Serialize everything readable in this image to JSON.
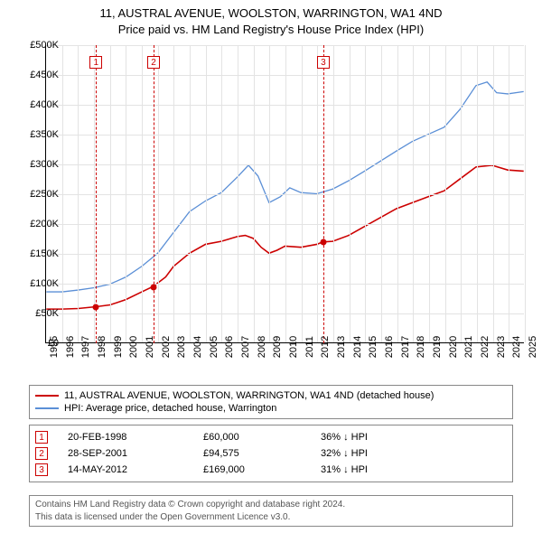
{
  "title_line1": "11, AUSTRAL AVENUE, WOOLSTON, WARRINGTON, WA1 4ND",
  "title_line2": "Price paid vs. HM Land Registry's House Price Index (HPI)",
  "chart": {
    "type": "line",
    "x_start_year": 1995,
    "x_end_year": 2025,
    "ylim": [
      0,
      500000
    ],
    "ytick_step": 50000,
    "ytick_labels": [
      "£0",
      "£50K",
      "£100K",
      "£150K",
      "£200K",
      "£250K",
      "£300K",
      "£350K",
      "£400K",
      "£450K",
      "£500K"
    ],
    "xtick_years": [
      1995,
      1996,
      1997,
      1998,
      1999,
      2000,
      2001,
      2002,
      2003,
      2004,
      2005,
      2006,
      2007,
      2008,
      2009,
      2010,
      2011,
      2012,
      2013,
      2014,
      2015,
      2016,
      2017,
      2018,
      2019,
      2020,
      2021,
      2022,
      2023,
      2024,
      2025
    ],
    "grid_color": "#e3e3e3",
    "background_color": "#ffffff",
    "series": [
      {
        "name": "property",
        "label": "11, AUSTRAL AVENUE, WOOLSTON, WARRINGTON, WA1 4ND (detached house)",
        "color": "#cc0000",
        "line_width": 1.6,
        "points": [
          [
            1995.0,
            56000
          ],
          [
            1996.0,
            56000
          ],
          [
            1997.0,
            57000
          ],
          [
            1998.13,
            60000
          ],
          [
            1999.0,
            63000
          ],
          [
            2000.0,
            72000
          ],
          [
            2001.0,
            85000
          ],
          [
            2001.74,
            94575
          ],
          [
            2002.5,
            110000
          ],
          [
            2003.0,
            128000
          ],
          [
            2004.0,
            150000
          ],
          [
            2005.0,
            165000
          ],
          [
            2006.0,
            170000
          ],
          [
            2007.0,
            178000
          ],
          [
            2007.5,
            180000
          ],
          [
            2008.0,
            175000
          ],
          [
            2008.5,
            160000
          ],
          [
            2009.0,
            150000
          ],
          [
            2009.5,
            155000
          ],
          [
            2010.0,
            162000
          ],
          [
            2011.0,
            160000
          ],
          [
            2012.0,
            165000
          ],
          [
            2012.37,
            169000
          ],
          [
            2013.0,
            170000
          ],
          [
            2014.0,
            180000
          ],
          [
            2015.0,
            195000
          ],
          [
            2016.0,
            210000
          ],
          [
            2017.0,
            225000
          ],
          [
            2018.0,
            235000
          ],
          [
            2019.0,
            245000
          ],
          [
            2020.0,
            255000
          ],
          [
            2021.0,
            275000
          ],
          [
            2022.0,
            295000
          ],
          [
            2023.0,
            298000
          ],
          [
            2024.0,
            290000
          ],
          [
            2025.0,
            288000
          ]
        ]
      },
      {
        "name": "hpi",
        "label": "HPI: Average price, detached house, Warrington",
        "color": "#5b8fd6",
        "line_width": 1.3,
        "points": [
          [
            1995.0,
            85000
          ],
          [
            1996.0,
            85000
          ],
          [
            1997.0,
            88000
          ],
          [
            1998.0,
            92000
          ],
          [
            1999.0,
            98000
          ],
          [
            2000.0,
            110000
          ],
          [
            2001.0,
            128000
          ],
          [
            2002.0,
            150000
          ],
          [
            2003.0,
            185000
          ],
          [
            2004.0,
            220000
          ],
          [
            2005.0,
            238000
          ],
          [
            2006.0,
            252000
          ],
          [
            2007.0,
            278000
          ],
          [
            2007.7,
            298000
          ],
          [
            2008.3,
            280000
          ],
          [
            2009.0,
            235000
          ],
          [
            2009.7,
            245000
          ],
          [
            2010.3,
            260000
          ],
          [
            2011.0,
            252000
          ],
          [
            2012.0,
            250000
          ],
          [
            2013.0,
            258000
          ],
          [
            2014.0,
            272000
          ],
          [
            2015.0,
            288000
          ],
          [
            2016.0,
            305000
          ],
          [
            2017.0,
            322000
          ],
          [
            2018.0,
            338000
          ],
          [
            2019.0,
            350000
          ],
          [
            2020.0,
            362000
          ],
          [
            2021.0,
            392000
          ],
          [
            2022.0,
            432000
          ],
          [
            2022.7,
            438000
          ],
          [
            2023.3,
            420000
          ],
          [
            2024.0,
            418000
          ],
          [
            2025.0,
            422000
          ]
        ]
      }
    ],
    "sale_markers": [
      {
        "num": "1",
        "year": 1998.13,
        "price": 60000,
        "color": "#cc0000"
      },
      {
        "num": "2",
        "year": 2001.74,
        "price": 94575,
        "color": "#cc0000"
      },
      {
        "num": "3",
        "year": 2012.37,
        "price": 169000,
        "color": "#cc0000"
      }
    ]
  },
  "legend": {
    "rows": [
      {
        "color": "#cc0000",
        "label": "11, AUSTRAL AVENUE, WOOLSTON, WARRINGTON, WA1 4ND (detached house)"
      },
      {
        "color": "#5b8fd6",
        "label": "HPI: Average price, detached house, Warrington"
      }
    ]
  },
  "sales_table": {
    "rows": [
      {
        "num": "1",
        "date": "20-FEB-1998",
        "price": "£60,000",
        "diff": "36% ↓ HPI",
        "color": "#cc0000"
      },
      {
        "num": "2",
        "date": "28-SEP-2001",
        "price": "£94,575",
        "diff": "32% ↓ HPI",
        "color": "#cc0000"
      },
      {
        "num": "3",
        "date": "14-MAY-2012",
        "price": "£169,000",
        "diff": "31% ↓ HPI",
        "color": "#cc0000"
      }
    ]
  },
  "footer_line1": "Contains HM Land Registry data © Crown copyright and database right 2024.",
  "footer_line2": "This data is licensed under the Open Government Licence v3.0."
}
